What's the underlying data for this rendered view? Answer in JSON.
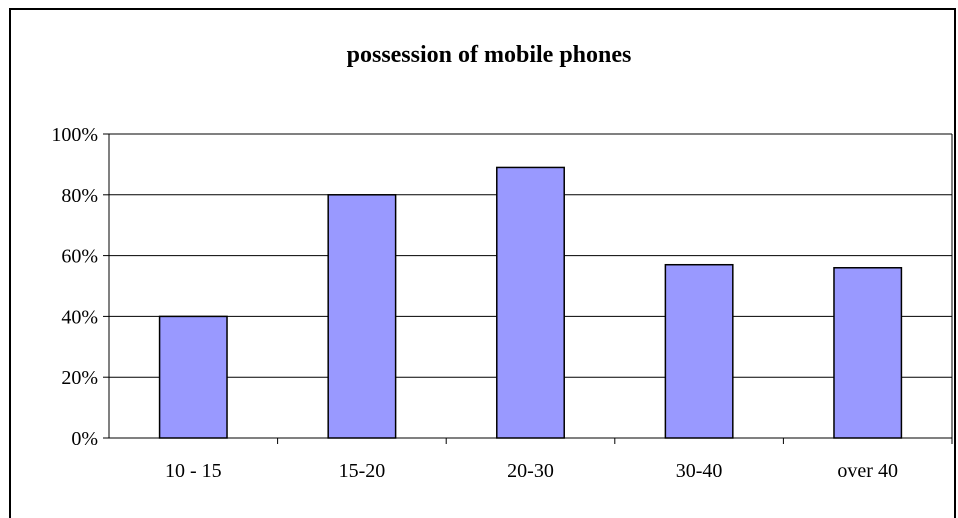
{
  "chart_data": {
    "type": "bar",
    "title": "possession of mobile phones",
    "categories": [
      "10 - 15",
      "15-20",
      "20-30",
      "30-40",
      "over 40"
    ],
    "values": [
      40,
      80,
      89,
      57,
      56
    ],
    "ylim": [
      0,
      100
    ],
    "yticks": [
      "0%",
      "20%",
      "40%",
      "60%",
      "80%",
      "100%"
    ],
    "xlabel": "",
    "ylabel": "",
    "grid": true,
    "legend": "none",
    "bar_color": "#9999ff"
  }
}
